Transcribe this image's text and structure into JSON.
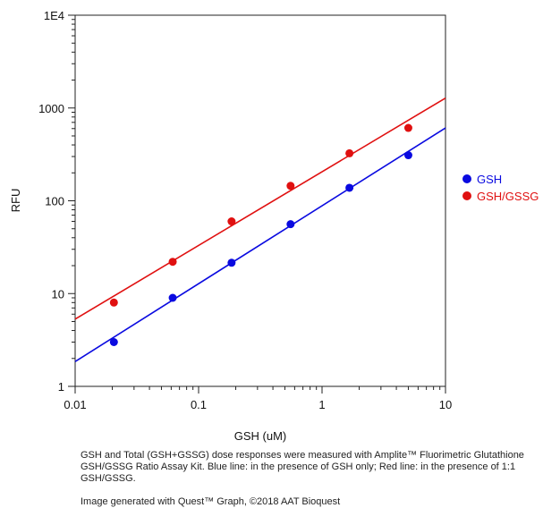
{
  "chart_data": {
    "type": "scatter",
    "xscale": "log",
    "yscale": "log",
    "xlim": [
      0.01,
      10
    ],
    "ylim": [
      1,
      10000
    ],
    "xlabel": "GSH (uM)",
    "ylabel": "RFU",
    "x_ticks": [
      "0.01",
      "0.1",
      "1",
      "10"
    ],
    "y_ticks": [
      "1",
      "10",
      "100",
      "1000",
      "1E4"
    ],
    "legend_position": "right",
    "series": [
      {
        "name": "GSH",
        "color": "#0a0ae0",
        "x": [
          0.0206,
          0.0617,
          0.185,
          0.556,
          1.667,
          5.0
        ],
        "y": [
          3.0,
          9.0,
          21.5,
          56,
          138,
          310
        ],
        "fit_line": [
          [
            0.01,
            1.85
          ],
          [
            10,
            610
          ]
        ]
      },
      {
        "name": "GSH/GSSG",
        "color": "#e01010",
        "x": [
          0.0206,
          0.0617,
          0.185,
          0.556,
          1.667,
          5.0
        ],
        "y": [
          8.0,
          22,
          60,
          145,
          325,
          610
        ],
        "fit_line": [
          [
            0.01,
            5.3
          ],
          [
            10,
            1280
          ]
        ]
      }
    ]
  },
  "caption": {
    "text": "GSH and Total (GSH+GSSG) dose responses were measured with Amplite™ Fluorimetric Glutathione GSH/GSSG Ratio Assay Kit. Blue line: in the presence of GSH only; Red line: in the presence of 1:1 GSH/GSSG.",
    "credit": "Image generated with Quest™ Graph, ©2018 AAT Bioquest"
  }
}
